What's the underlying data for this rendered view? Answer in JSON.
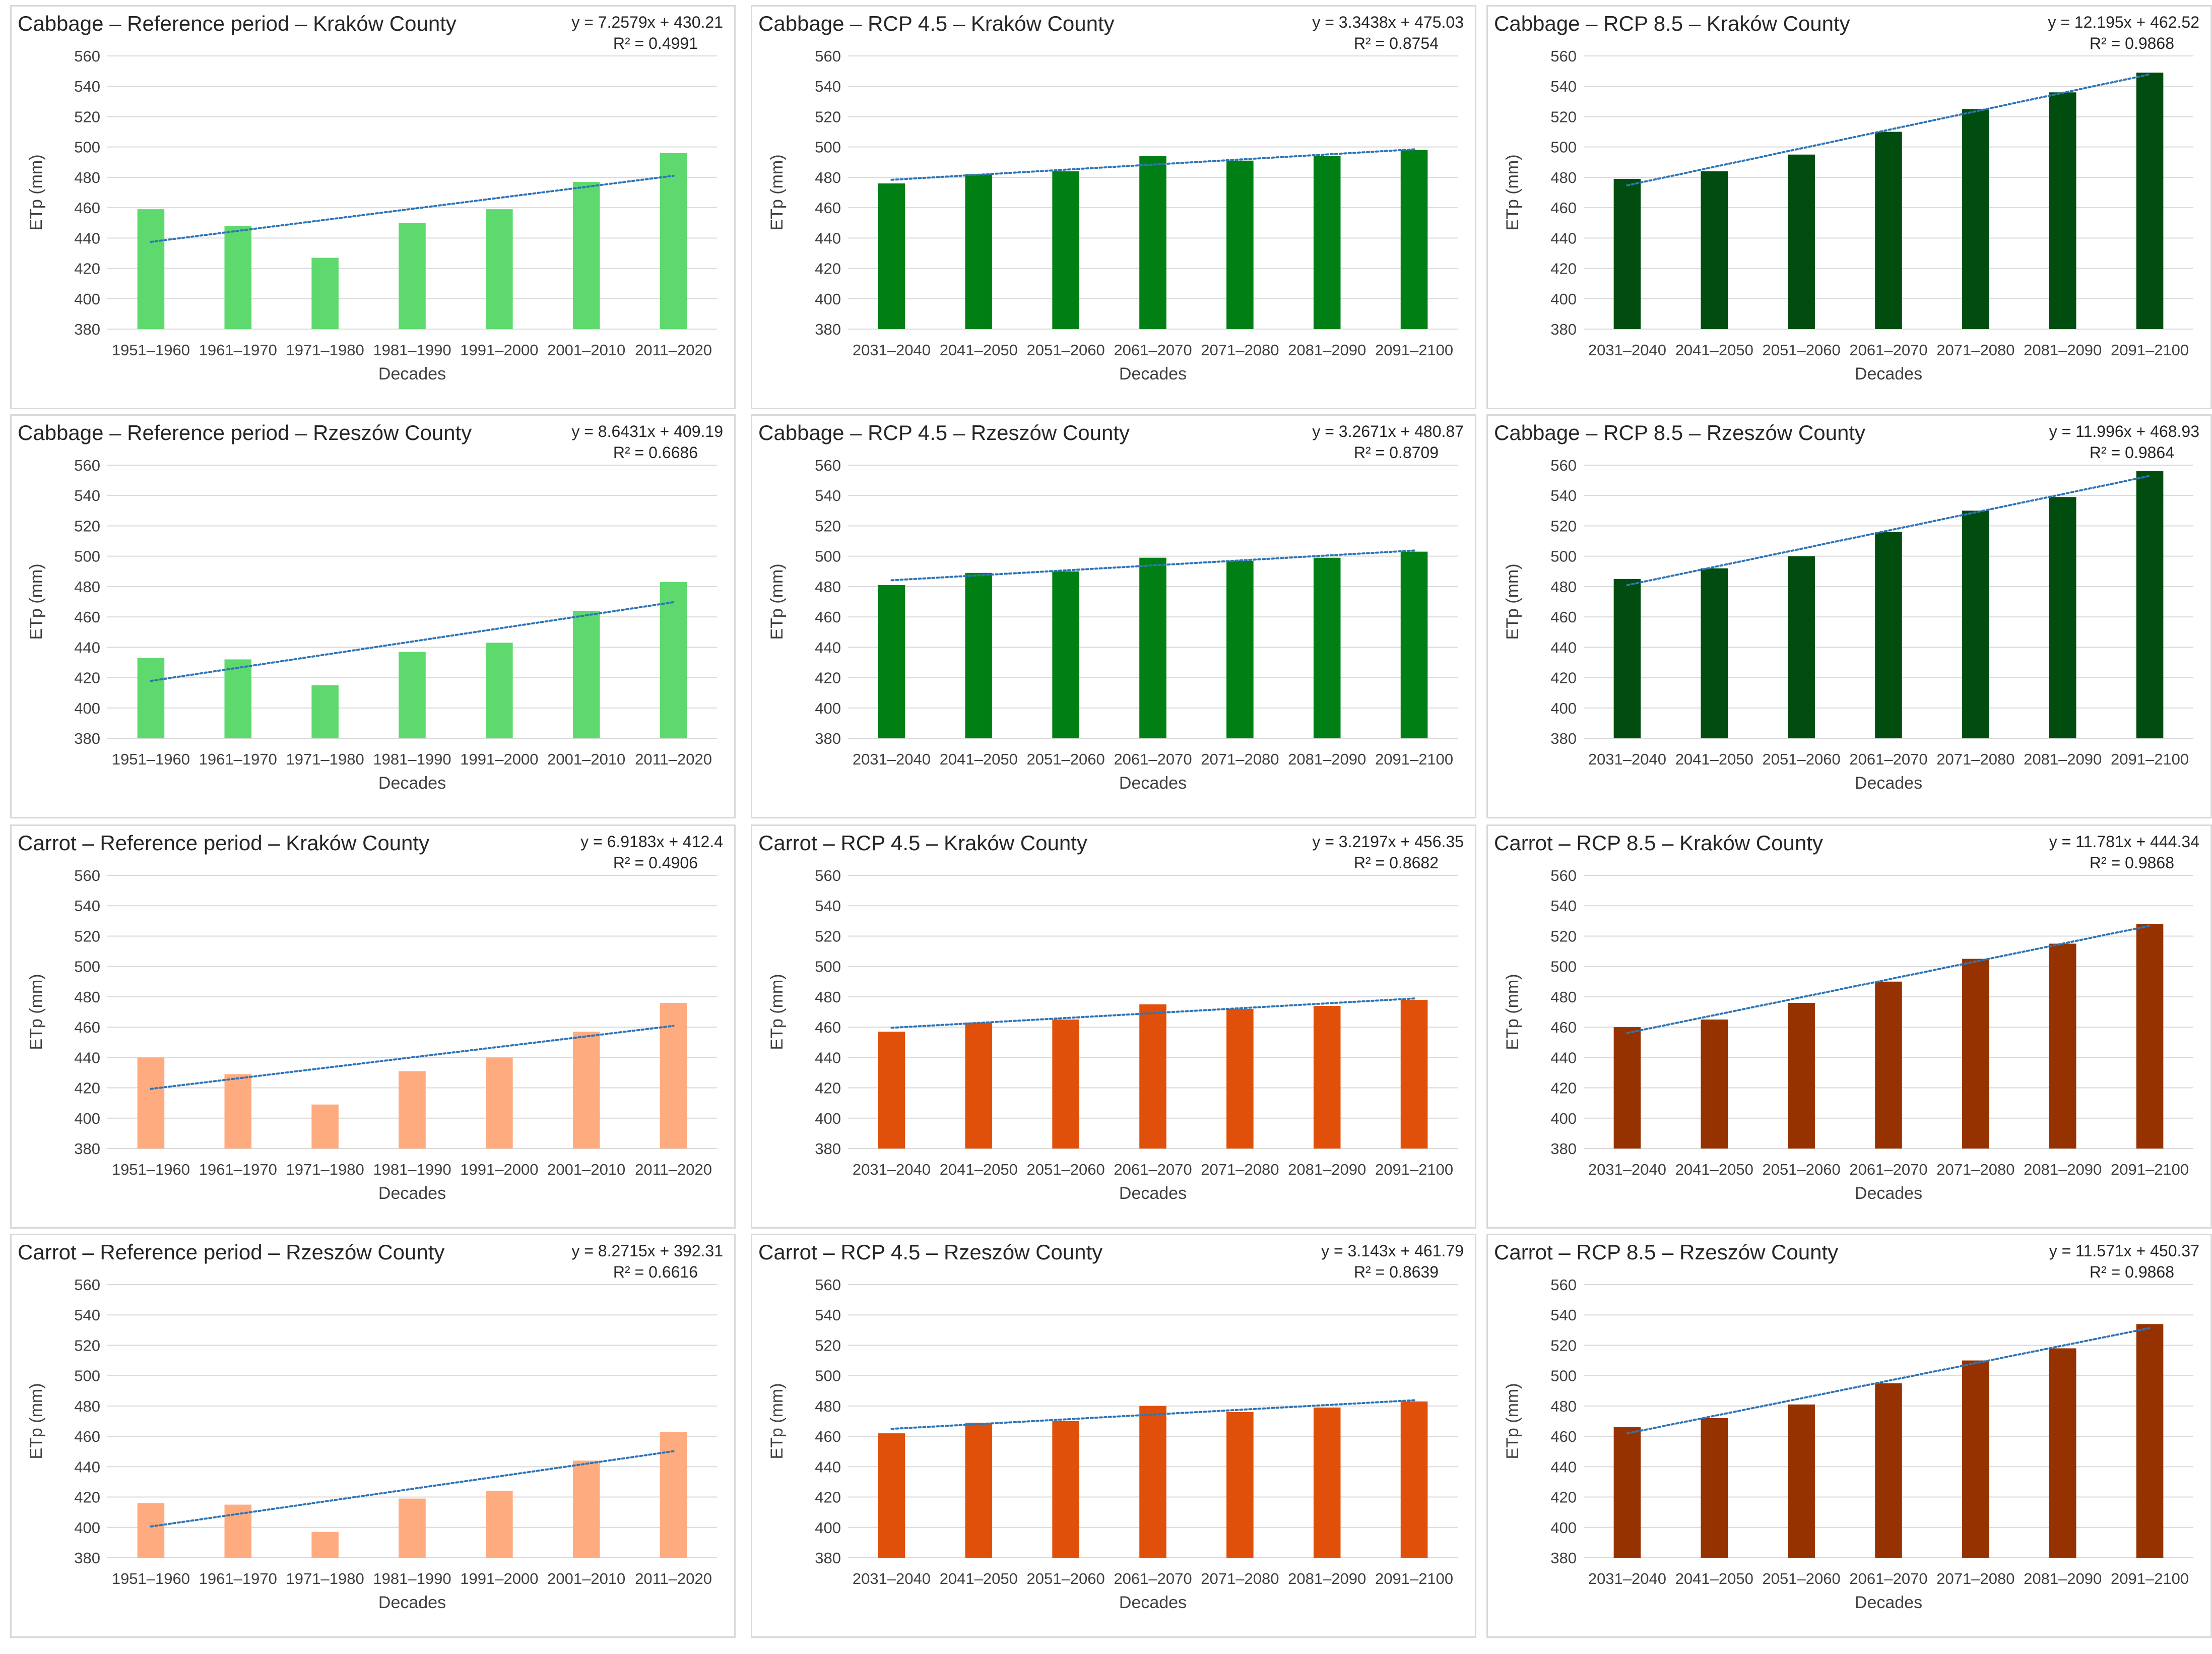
{
  "chart_data": [
    {
      "type": "bar",
      "title": "Cabbage – Reference period – Kraków County",
      "equation": "y = 7.2579x + 430.21",
      "r2": "R² = 0.4991",
      "categories": [
        "1951–1960",
        "1961–1970",
        "1971–1980",
        "1981–1990",
        "1991–2000",
        "2001–2010",
        "2011–2020"
      ],
      "values": [
        459,
        448,
        427,
        450,
        459,
        477,
        496
      ],
      "trend": {
        "slope": 7.2579,
        "intercept": 430.21
      },
      "xlabel": "Decades",
      "ylabel": "ETp (mm)",
      "ylim": [
        380,
        560
      ],
      "yticks": [
        "380",
        "400",
        "420",
        "440",
        "460",
        "480",
        "500",
        "520",
        "540",
        "560"
      ],
      "color": "#5ED96E"
    },
    {
      "type": "bar",
      "title": "Cabbage – RCP 4.5 – Kraków County",
      "equation": "y = 3.3438x + 475.03",
      "r2": "R² = 0.8754",
      "categories": [
        "2031–2040",
        "2041–2050",
        "2051–2060",
        "2061–2070",
        "2071–2080",
        "2081–2090",
        "2091–2100"
      ],
      "values": [
        476,
        482,
        484,
        494,
        491,
        494,
        498
      ],
      "trend": {
        "slope": 3.3438,
        "intercept": 475.03
      },
      "xlabel": "Decades",
      "ylabel": "ETp (mm)",
      "ylim": [
        380,
        560
      ],
      "yticks": [
        "380",
        "400",
        "420",
        "440",
        "460",
        "480",
        "500",
        "520",
        "540",
        "560"
      ],
      "color": "#008014"
    },
    {
      "type": "bar",
      "title": "Cabbage – RCP 8.5 – Kraków County",
      "equation": "y = 12.195x + 462.52",
      "r2": "R² = 0.9868",
      "categories": [
        "2031–2040",
        "2041–2050",
        "2051–2060",
        "2061–2070",
        "2071–2080",
        "2081–2090",
        "2091–2100"
      ],
      "values": [
        479,
        484,
        495,
        510,
        525,
        536,
        549
      ],
      "trend": {
        "slope": 12.195,
        "intercept": 462.52
      },
      "xlabel": "Decades",
      "ylabel": "ETp (mm)",
      "ylim": [
        380,
        560
      ],
      "yticks": [
        "380",
        "400",
        "420",
        "440",
        "460",
        "480",
        "500",
        "520",
        "540",
        "560"
      ],
      "color": "#014D10"
    },
    {
      "type": "bar",
      "title": "Cabbage – Reference period – Rzeszów County",
      "equation": "y = 8.6431x + 409.19",
      "r2": "R² = 0.6686",
      "categories": [
        "1951–1960",
        "1961–1970",
        "1971–1980",
        "1981–1990",
        "1991–2000",
        "2001–2010",
        "2011–2020"
      ],
      "values": [
        433,
        432,
        415,
        437,
        443,
        464,
        483
      ],
      "trend": {
        "slope": 8.6431,
        "intercept": 409.19
      },
      "xlabel": "Decades",
      "ylabel": "ETp (mm)",
      "ylim": [
        380,
        560
      ],
      "yticks": [
        "380",
        "400",
        "420",
        "440",
        "460",
        "480",
        "500",
        "520",
        "540",
        "560"
      ],
      "color": "#5ED96E"
    },
    {
      "type": "bar",
      "title": "Cabbage – RCP 4.5 – Rzeszów County",
      "equation": "y = 3.2671x + 480.87",
      "r2": "R² = 0.8709",
      "categories": [
        "2031–2040",
        "2041–2050",
        "2051–2060",
        "2061–2070",
        "2071–2080",
        "2081–2090",
        "2091–2100"
      ],
      "values": [
        481,
        489,
        490,
        499,
        497,
        499,
        503
      ],
      "trend": {
        "slope": 3.2671,
        "intercept": 480.87
      },
      "xlabel": "Decades",
      "ylabel": "ETp (mm)",
      "ylim": [
        380,
        560
      ],
      "yticks": [
        "380",
        "400",
        "420",
        "440",
        "460",
        "480",
        "500",
        "520",
        "540",
        "560"
      ],
      "color": "#008014"
    },
    {
      "type": "bar",
      "title": "Cabbage – RCP 8.5 – Rzeszów County",
      "equation": "y = 11.996x + 468.93",
      "r2": "R² = 0.9864",
      "categories": [
        "2031–2040",
        "2041–2050",
        "2051–2060",
        "2061–2070",
        "2071–2080",
        "2081–2090",
        "2091–2100"
      ],
      "values": [
        485,
        492,
        500,
        516,
        530,
        539,
        556
      ],
      "trend": {
        "slope": 11.996,
        "intercept": 468.93
      },
      "xlabel": "Decades",
      "ylabel": "ETp (mm)",
      "ylim": [
        380,
        560
      ],
      "yticks": [
        "380",
        "400",
        "420",
        "440",
        "460",
        "480",
        "500",
        "520",
        "540",
        "560"
      ],
      "color": "#014D10"
    },
    {
      "type": "bar",
      "title": "Carrot – Reference period – Kraków County",
      "equation": "y = 6.9183x + 412.4",
      "r2": "R² = 0.4906",
      "categories": [
        "1951–1960",
        "1961–1970",
        "1971–1980",
        "1981–1990",
        "1991–2000",
        "2001–2010",
        "2011–2020"
      ],
      "values": [
        440,
        429,
        409,
        431,
        440,
        457,
        476
      ],
      "trend": {
        "slope": 6.9183,
        "intercept": 412.4
      },
      "xlabel": "Decades",
      "ylabel": "ETp (mm)",
      "ylim": [
        380,
        560
      ],
      "yticks": [
        "380",
        "400",
        "420",
        "440",
        "460",
        "480",
        "500",
        "520",
        "540",
        "560"
      ],
      "color": "#FFAB80"
    },
    {
      "type": "bar",
      "title": "Carrot – RCP 4.5 – Kraków County",
      "equation": "y = 3.2197x + 456.35",
      "r2": "R² = 0.8682",
      "categories": [
        "2031–2040",
        "2041–2050",
        "2051–2060",
        "2061–2070",
        "2071–2080",
        "2081–2090",
        "2091–2100"
      ],
      "values": [
        457,
        463,
        465,
        475,
        472,
        474,
        478
      ],
      "trend": {
        "slope": 3.2197,
        "intercept": 456.35
      },
      "xlabel": "Decades",
      "ylabel": "ETp (mm)",
      "ylim": [
        380,
        560
      ],
      "yticks": [
        "380",
        "400",
        "420",
        "440",
        "460",
        "480",
        "500",
        "520",
        "540",
        "560"
      ],
      "color": "#E0500A"
    },
    {
      "type": "bar",
      "title": "Carrot – RCP 8.5 – Kraków County",
      "equation": "y = 11.781x + 444.34",
      "r2": "R² = 0.9868",
      "categories": [
        "2031–2040",
        "2041–2050",
        "2051–2060",
        "2061–2070",
        "2071–2080",
        "2081–2090",
        "2091–2100"
      ],
      "values": [
        460,
        465,
        476,
        490,
        505,
        515,
        528
      ],
      "trend": {
        "slope": 11.781,
        "intercept": 444.34
      },
      "xlabel": "Decades",
      "ylabel": "ETp (mm)",
      "ylim": [
        380,
        560
      ],
      "yticks": [
        "380",
        "400",
        "420",
        "440",
        "460",
        "480",
        "500",
        "520",
        "540",
        "560"
      ],
      "color": "#963200"
    },
    {
      "type": "bar",
      "title": "Carrot – Reference period – Rzeszów County",
      "equation": "y = 8.2715x + 392.31",
      "r2": "R² = 0.6616",
      "categories": [
        "1951–1960",
        "1961–1970",
        "1971–1980",
        "1981–1990",
        "1991–2000",
        "2001–2010",
        "2011–2020"
      ],
      "values": [
        416,
        415,
        397,
        419,
        424,
        444,
        463
      ],
      "trend": {
        "slope": 8.2715,
        "intercept": 392.31
      },
      "xlabel": "Decades",
      "ylabel": "ETp (mm)",
      "ylim": [
        380,
        560
      ],
      "yticks": [
        "380",
        "400",
        "420",
        "440",
        "460",
        "480",
        "500",
        "520",
        "540",
        "560"
      ],
      "color": "#FFAB80"
    },
    {
      "type": "bar",
      "title": "Carrot – RCP 4.5 – Rzeszów County",
      "equation": "y = 3.143x + 461.79",
      "r2": "R² = 0.8639",
      "categories": [
        "2031–2040",
        "2041–2050",
        "2051–2060",
        "2061–2070",
        "2071–2080",
        "2081–2090",
        "2091–2100"
      ],
      "values": [
        462,
        469,
        470,
        480,
        476,
        479,
        483
      ],
      "trend": {
        "slope": 3.143,
        "intercept": 461.79
      },
      "xlabel": "Decades",
      "ylabel": "ETp (mm)",
      "ylim": [
        380,
        560
      ],
      "yticks": [
        "380",
        "400",
        "420",
        "440",
        "460",
        "480",
        "500",
        "520",
        "540",
        "560"
      ],
      "color": "#E0500A"
    },
    {
      "type": "bar",
      "title": "Carrot – RCP 8.5 – Rzeszów County",
      "equation": "y = 11.571x + 450.37",
      "r2": "R² = 0.9868",
      "categories": [
        "2031–2040",
        "2041–2050",
        "2051–2060",
        "2061–2070",
        "2071–2080",
        "2081–2090",
        "2091–2100"
      ],
      "values": [
        466,
        472,
        481,
        495,
        510,
        518,
        534
      ],
      "trend": {
        "slope": 11.571,
        "intercept": 450.37
      },
      "xlabel": "Decades",
      "ylabel": "ETp (mm)",
      "ylim": [
        380,
        560
      ],
      "yticks": [
        "380",
        "400",
        "420",
        "440",
        "460",
        "480",
        "500",
        "520",
        "540",
        "560"
      ],
      "color": "#963200"
    }
  ]
}
